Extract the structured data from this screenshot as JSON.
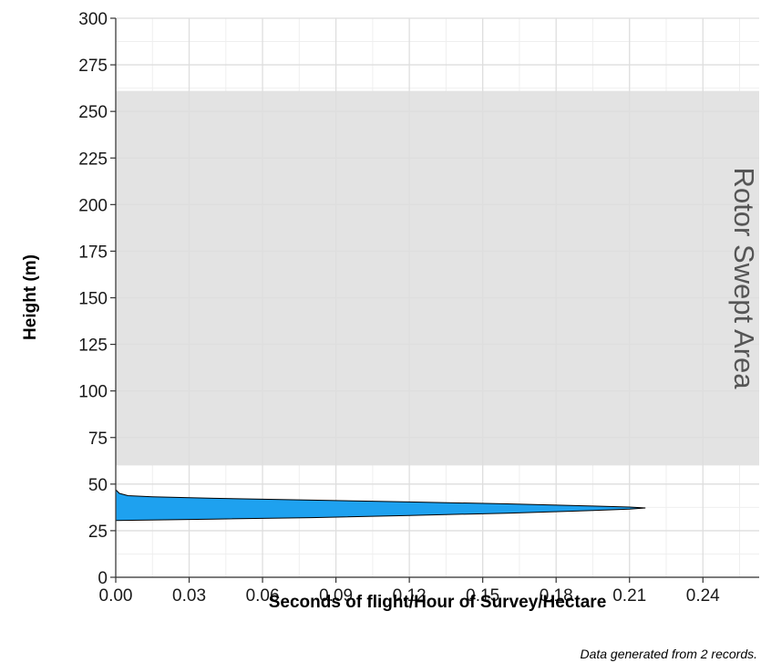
{
  "chart_data": {
    "type": "area",
    "xlabel": "Seconds of flight/Hour of Survey/Hectare",
    "ylabel": "Height (m)",
    "xlim": [
      0,
      0.263
    ],
    "ylim": [
      0,
      300
    ],
    "x_ticks": [
      0.0,
      0.03,
      0.06,
      0.09,
      0.12,
      0.15,
      0.18,
      0.21,
      0.24
    ],
    "x_tick_labels": [
      "0.00",
      "0.03",
      "0.06",
      "0.09",
      "0.12",
      "0.15",
      "0.18",
      "0.21",
      "0.24"
    ],
    "y_ticks": [
      0,
      25,
      50,
      75,
      100,
      125,
      150,
      175,
      200,
      225,
      250,
      275,
      300
    ],
    "y_tick_labels": [
      "0",
      "25",
      "50",
      "75",
      "100",
      "125",
      "150",
      "175",
      "200",
      "225",
      "250",
      "275",
      "300"
    ],
    "grid": true,
    "band": {
      "label": "Rotor Swept Area",
      "y_range": [
        60,
        261
      ],
      "color": "#e3e3e3"
    },
    "series": [
      {
        "fill": "#1ea1ef",
        "stroke": "#000000",
        "points": [
          [
            0.0,
            30.5
          ],
          [
            0.04,
            31.2
          ],
          [
            0.08,
            32.0
          ],
          [
            0.12,
            33.2
          ],
          [
            0.16,
            34.4
          ],
          [
            0.195,
            35.8
          ],
          [
            0.21,
            36.6
          ],
          [
            0.2165,
            37.2
          ],
          [
            0.21,
            37.7
          ],
          [
            0.195,
            38.2
          ],
          [
            0.16,
            39.4
          ],
          [
            0.12,
            40.4
          ],
          [
            0.08,
            41.4
          ],
          [
            0.04,
            42.4
          ],
          [
            0.015,
            43.2
          ],
          [
            0.005,
            43.8
          ],
          [
            0.0015,
            45.0
          ],
          [
            0.0,
            47.0
          ]
        ]
      }
    ],
    "caption": "Data generated from 2 records."
  }
}
